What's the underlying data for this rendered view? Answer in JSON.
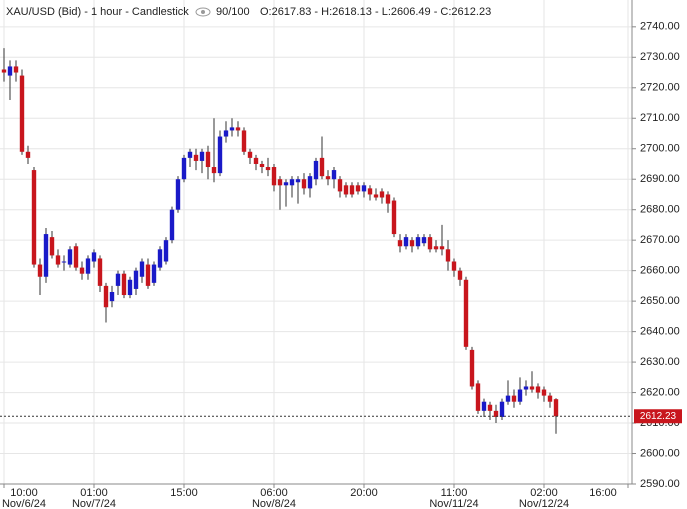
{
  "chart_data": {
    "type": "candlestick",
    "title": "XAU/USD (Bid) - 1 hour - Candlestick",
    "zoom": "90/100",
    "readout": [
      "O:2617.83",
      "H:2618.13",
      "L:2606.49",
      "C:2612.23"
    ],
    "up_color": "#1a1ac8",
    "down_color": "#c8161d",
    "ylim": [
      2590,
      2748.8
    ],
    "yticks": [
      {
        "value": 2590,
        "label": "2590.00"
      },
      {
        "value": 2600,
        "label": "2600.00"
      },
      {
        "value": 2610,
        "label": "2610.00"
      },
      {
        "value": 2620,
        "label": "2620.00"
      },
      {
        "value": 2630,
        "label": "2630.00"
      },
      {
        "value": 2640,
        "label": "2640.00"
      },
      {
        "value": 2650,
        "label": "2650.00"
      },
      {
        "value": 2660,
        "label": "2660.00"
      },
      {
        "value": 2670,
        "label": "2670.00"
      },
      {
        "value": 2680,
        "label": "2680.00"
      },
      {
        "value": 2690,
        "label": "2690.00"
      },
      {
        "value": 2700,
        "label": "2700.00"
      },
      {
        "value": 2710,
        "label": "2710.00"
      },
      {
        "value": 2720,
        "label": "2720.00"
      },
      {
        "value": 2730,
        "label": "2730.00"
      },
      {
        "value": 2740,
        "label": "2740.00"
      }
    ],
    "xticks": [
      {
        "value": 0,
        "label": "10:00",
        "date": "Nov/6/24"
      },
      {
        "value": 15,
        "label": "01:00",
        "date": "Nov/7/24"
      },
      {
        "value": 30,
        "label": "15:00"
      },
      {
        "value": 45,
        "label": "06:00",
        "date": "Nov/8/24"
      },
      {
        "value": 60,
        "label": "20:00"
      },
      {
        "value": 75,
        "label": "11:00",
        "date": "Nov/11/24"
      },
      {
        "value": 90,
        "label": "02:00",
        "date": "Nov/12/24"
      },
      {
        "value": 104,
        "label": "16:00"
      }
    ],
    "grid": true,
    "last_price": 2612.23,
    "open": [
      2726,
      2724,
      2727,
      2724,
      2699,
      2693,
      2662,
      2658,
      2671,
      2665,
      2663,
      2662,
      2668,
      2661,
      2659,
      2663,
      2664,
      2655,
      2650,
      2655,
      2659,
      2652,
      2654,
      2658,
      2662,
      2656,
      2661,
      2663,
      2670,
      2680,
      2690,
      2697,
      2698,
      2696,
      2699,
      2694,
      2692,
      2704,
      2706,
      2707,
      2706,
      2699,
      2697,
      2695,
      2694,
      2694,
      2690,
      2688,
      2688,
      2689,
      2690,
      2687,
      2690,
      2697,
      2691,
      2690,
      2690,
      2688,
      2688,
      2688,
      2686,
      2687,
      2685,
      2686,
      2685,
      2683,
      2670,
      2668,
      2670,
      2668,
      2669,
      2671,
      2668,
      2668,
      2667,
      2663,
      2660,
      2657,
      2634,
      2623,
      2614,
      2616,
      2614,
      2612,
      2617,
      2619,
      2617,
      2621,
      2622,
      2622,
      2621,
      2619,
      2617.83
    ],
    "high": [
      2733,
      2729,
      2729,
      2726,
      2701,
      2694,
      2664,
      2674,
      2673,
      2667,
      2665,
      2668,
      2669,
      2663,
      2665,
      2667,
      2665,
      2656,
      2655,
      2660,
      2660,
      2658,
      2661,
      2664,
      2664,
      2663,
      2668,
      2671,
      2681,
      2691,
      2698,
      2700,
      2700,
      2700,
      2701,
      2710,
      2706,
      2709,
      2710,
      2709,
      2707,
      2700,
      2698,
      2696,
      2697,
      2695,
      2691,
      2690,
      2691,
      2691,
      2692,
      2692,
      2697,
      2704,
      2693,
      2694,
      2691,
      2689,
      2689,
      2689,
      2689,
      2688,
      2687,
      2687,
      2686,
      2684,
      2672,
      2672,
      2671,
      2672,
      2672,
      2672,
      2670,
      2675,
      2670,
      2664,
      2661,
      2658,
      2635,
      2624,
      2618,
      2617,
      2616,
      2618,
      2624,
      2621,
      2625,
      2624,
      2627,
      2623,
      2622,
      2620,
      2618.13
    ],
    "low": [
      2722,
      2716,
      2722,
      2698,
      2695,
      2661,
      2652,
      2656,
      2664,
      2661,
      2660,
      2661,
      2660,
      2657,
      2657,
      2661,
      2653,
      2643,
      2648,
      2652,
      2651,
      2651,
      2652,
      2656,
      2654,
      2655,
      2660,
      2662,
      2669,
      2679,
      2689,
      2694,
      2693,
      2692,
      2690,
      2689,
      2691,
      2702,
      2704,
      2704,
      2698,
      2695,
      2693,
      2692,
      2691,
      2686,
      2680,
      2681,
      2684,
      2682,
      2685,
      2684,
      2688,
      2690,
      2688,
      2687,
      2684,
      2684,
      2684,
      2685,
      2684,
      2683,
      2683,
      2682,
      2679,
      2671,
      2666,
      2667,
      2666,
      2667,
      2668,
      2666,
      2666,
      2665,
      2660,
      2658,
      2655,
      2634,
      2621,
      2613,
      2612,
      2611,
      2610,
      2611,
      2616,
      2615,
      2616,
      2619,
      2620,
      2618,
      2617,
      2615,
      2606.49
    ],
    "close": [
      2725,
      2727,
      2725,
      2699,
      2697,
      2662,
      2658,
      2672,
      2665,
      2662,
      2663,
      2667,
      2661,
      2659,
      2664,
      2666,
      2655,
      2648,
      2653,
      2659,
      2652,
      2657,
      2660,
      2663,
      2655,
      2662,
      2667,
      2670,
      2680,
      2690,
      2697,
      2699,
      2696,
      2699,
      2694,
      2692,
      2704,
      2706,
      2707,
      2706,
      2699,
      2697,
      2695,
      2694,
      2693,
      2688,
      2688,
      2689,
      2690,
      2690,
      2687,
      2691,
      2696,
      2691,
      2690,
      2693,
      2686,
      2685,
      2685,
      2686,
      2688,
      2685,
      2684,
      2684,
      2682,
      2672,
      2668,
      2671,
      2668,
      2671,
      2671,
      2667,
      2667,
      2667,
      2663,
      2660,
      2657,
      2635,
      2622,
      2614,
      2617,
      2614,
      2612,
      2617,
      2619,
      2617,
      2621,
      2622,
      2621,
      2620,
      2619,
      2617,
      2612.23
    ]
  }
}
